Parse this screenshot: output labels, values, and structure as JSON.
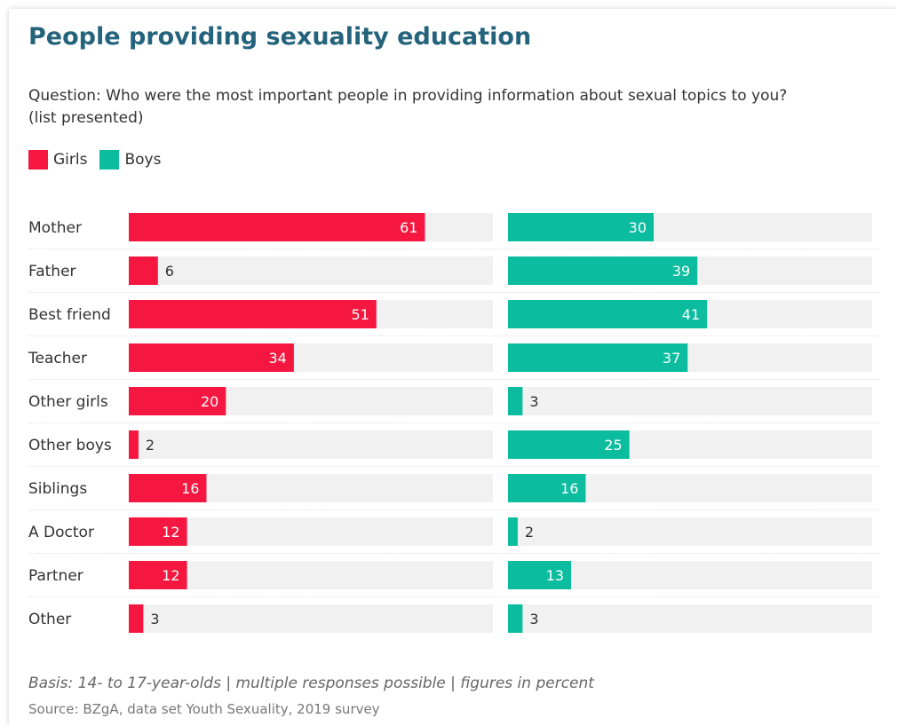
{
  "title": "People providing sexuality education",
  "question_line1": "Question: Who were the most important people in providing information about sexual topics to you?",
  "question_line2": "(list presented)",
  "footer_basis": "Basis: 14- to 17-year-olds | multiple responses possible | figures in percent",
  "footer_source": "Source: BZgA, data set Youth Sexuality, 2019 survey",
  "colors": {
    "girls": "#f5173f",
    "boys": "#0bbc9f",
    "track": "#f1f1f1",
    "divider": "#d8d8d8"
  },
  "chart_data": {
    "type": "bar",
    "orientation": "horizontal",
    "title": "People providing sexuality education",
    "categories": [
      "Mother",
      "Father",
      "Best friend",
      "Teacher",
      "Other girls",
      "Other boys",
      "Siblings",
      "A Doctor",
      "Partner",
      "Other"
    ],
    "series": [
      {
        "name": "Girls",
        "values": [
          61,
          6,
          51,
          34,
          20,
          2,
          16,
          12,
          12,
          3
        ]
      },
      {
        "name": "Boys",
        "values": [
          30,
          39,
          41,
          37,
          3,
          25,
          16,
          2,
          13,
          3
        ]
      }
    ],
    "xlim": [
      0,
      75
    ],
    "grid": false,
    "legend": "top-left",
    "data_labels": true
  }
}
